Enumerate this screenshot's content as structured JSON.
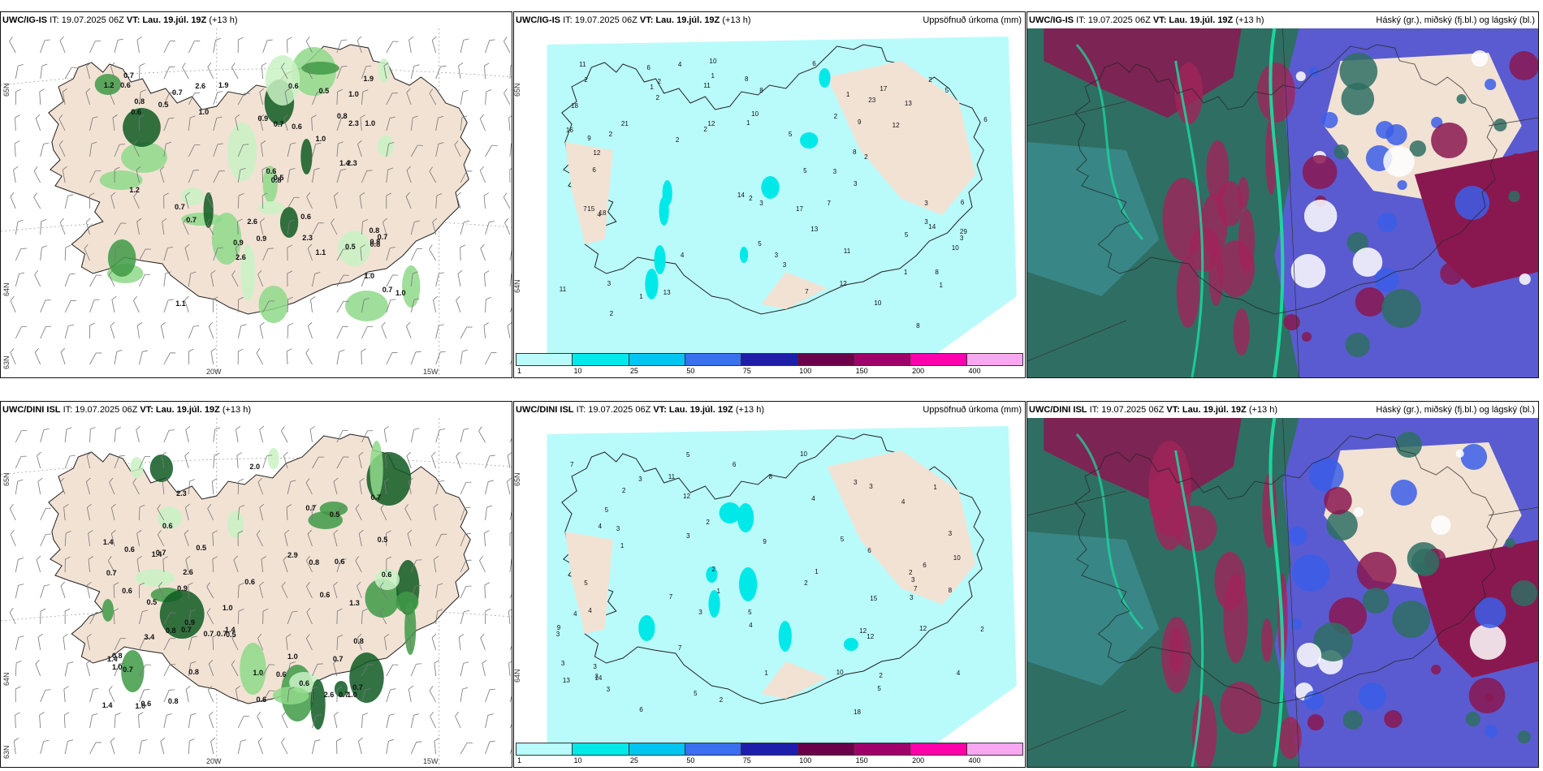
{
  "common": {
    "issue": "IT: 19.07.2025 06Z",
    "valid": "VT: Lau. 19.júl. 19Z",
    "lead": "(+13 h)"
  },
  "panels": [
    {
      "model": "UWC/IG-IS",
      "product": "",
      "labels": [
        "0.6",
        "0.5",
        "0.6",
        "0.5",
        "1.0",
        "0.6",
        "0.8",
        "0.7",
        "0.6",
        "0.6",
        "0.7",
        "2.3",
        "1.9",
        "0.7",
        "2.6",
        "0.5",
        "0.8",
        "1.0",
        "2.6",
        "1.0",
        "0.6",
        "0.7",
        "0.9",
        "1.0",
        "0.7",
        "0.5",
        "0.8",
        "1.0",
        "0.8",
        "0.9",
        "0.7",
        "1.1",
        "0.8",
        "0.8",
        "1.0",
        "1.9",
        "1.2",
        "1.1",
        "2.6",
        "2.3",
        "2.3",
        "1.2",
        "0.9",
        "0.7",
        "1.4"
      ]
    },
    {
      "model": "UWC/IG-IS",
      "product": "Uppsöfnuð úrkoma (mm)",
      "labels": [
        "3",
        "2",
        "5",
        "1",
        "8",
        "12",
        "5",
        "14",
        "2",
        "13",
        "23",
        "1",
        "6",
        "8",
        "12",
        "13",
        "3",
        "6",
        "5",
        "10",
        "6",
        "1",
        "3",
        "21",
        "15",
        "12",
        "10",
        "8",
        "18",
        "18",
        "17",
        "29",
        "17",
        "13",
        "8",
        "10",
        "4",
        "7",
        "3",
        "6",
        "3",
        "8",
        "11",
        "5",
        "6",
        "16",
        "11",
        "11",
        "7",
        "3",
        "2",
        "12",
        "9",
        "7",
        "11",
        "2",
        "5",
        "14",
        "3",
        "4",
        "2",
        "3",
        "4",
        "2",
        "2",
        "1",
        "9",
        "1",
        "10",
        "2",
        "2",
        "3",
        "2",
        "2",
        "1",
        "1"
      ]
    },
    {
      "model": "UWC/IG-IS",
      "product": "Háský (gr.), miðský (fj.bl.) og lágský (bl.)",
      "labels": []
    },
    {
      "model": "UWC/DINI ISL",
      "product": "",
      "labels": [
        "3.4",
        "0.6",
        "0.6",
        "0.6",
        "1.0",
        "1.4",
        "1.0",
        "0.6",
        "1.0",
        "2.3",
        "0.7",
        "0.9",
        "0.7",
        "0.8",
        "0.6",
        "2.0",
        "1.4",
        "2.6",
        "2.6",
        "1.0",
        "0.6",
        "0.5",
        "0.7",
        "0.5",
        "0.7",
        "0.7",
        "0.6",
        "0.8",
        "0.7",
        "2.9",
        "1.0",
        "0.8",
        "0.5",
        "1.4",
        "0.9",
        "0.7",
        "0.7",
        "0.8",
        "0.7",
        "1.4",
        "0.6",
        "0.6",
        "0.5",
        "0.8",
        "0.7",
        "0.7",
        "1.3",
        "0.6",
        "0.5",
        "1.0",
        "1.4",
        "0.6",
        "0.8"
      ]
    },
    {
      "model": "UWC/DINI ISL",
      "product": "Uppsöfnuð úrkoma (mm)",
      "labels": [
        "6",
        "3",
        "10",
        "12",
        "9",
        "3",
        "1",
        "5",
        "8",
        "18",
        "1",
        "4",
        "3",
        "5",
        "9",
        "12",
        "5",
        "7",
        "2",
        "3",
        "8",
        "6",
        "4",
        "3",
        "3",
        "2",
        "5",
        "2",
        "4",
        "7",
        "12",
        "3",
        "1",
        "3",
        "5",
        "13",
        "4",
        "6",
        "14",
        "10",
        "7",
        "4",
        "3",
        "2",
        "1",
        "15",
        "12",
        "11",
        "10",
        "5",
        "6",
        "3",
        "4",
        "5",
        "7",
        "3",
        "2",
        "3",
        "2",
        "4",
        "3",
        "3",
        "2",
        "2",
        "1"
      ]
    },
    {
      "model": "UWC/DINI ISL",
      "product": "Háský (gr.), miðský (fj.bl.) og lágský (bl.)",
      "labels": []
    }
  ],
  "axis": {
    "lon": [
      "20W",
      "15W"
    ],
    "lat": [
      "65N",
      "64N",
      "63N"
    ]
  },
  "colorbar": {
    "colors": [
      "#b9fbfb",
      "#00e8e8",
      "#00c5f0",
      "#3a6ff0",
      "#1d1faa",
      "#6a004a",
      "#a0006a",
      "#ff00aa",
      "#f8a7f0"
    ],
    "ticks": [
      "1",
      "10",
      "25",
      "50",
      "75",
      "100",
      "150",
      "200",
      "400"
    ]
  }
}
